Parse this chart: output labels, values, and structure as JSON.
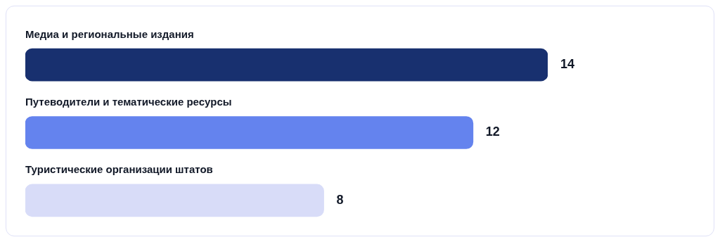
{
  "chart_data": {
    "type": "bar",
    "orientation": "horizontal",
    "categories": [
      "Медиа и региональные издания",
      "Путеводители и тематические ресурсы",
      "Туристические организации штатов"
    ],
    "values": [
      14,
      12,
      8
    ],
    "colors": [
      "#18306f",
      "#6483ee",
      "#d8dcf8"
    ],
    "data_labels": true,
    "legend": false
  }
}
